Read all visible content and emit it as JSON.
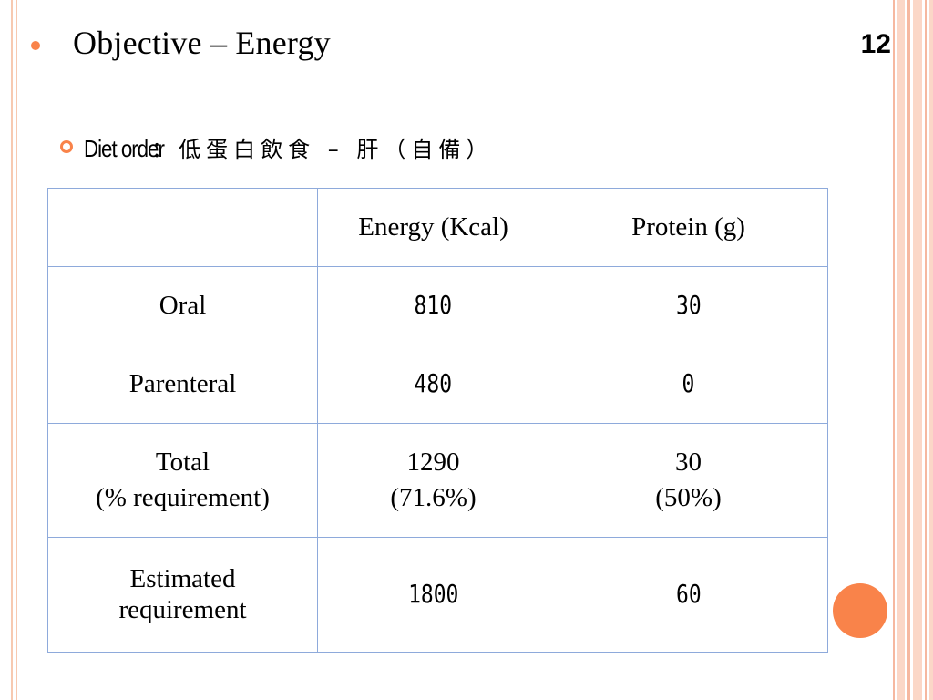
{
  "slide": {
    "title": "Objective – Energy",
    "number": "12",
    "diet_label": "Diet order",
    "diet_value": "：低蛋白飲食 – 肝（自備）"
  },
  "table": {
    "headers": [
      "",
      "Energy (Kcal)",
      "Protein (g)"
    ],
    "rows": [
      {
        "label": [
          "Oral"
        ],
        "energy": [
          "810"
        ],
        "protein": [
          "30"
        ]
      },
      {
        "label": [
          "Parenteral"
        ],
        "energy": [
          "480"
        ],
        "protein": [
          "0"
        ]
      },
      {
        "label": [
          "Total",
          "(% requirement)"
        ],
        "energy": [
          "1290",
          "(71.6%)"
        ],
        "protein": [
          "30",
          "(50%)"
        ]
      },
      {
        "label": [
          "Estimated",
          "requirement"
        ],
        "energy": [
          "1800"
        ],
        "protein": [
          "60"
        ]
      }
    ]
  },
  "colors": {
    "accent": "#f9834a",
    "stripe": "#f6b8a0",
    "table_border": "#8eaadb"
  }
}
